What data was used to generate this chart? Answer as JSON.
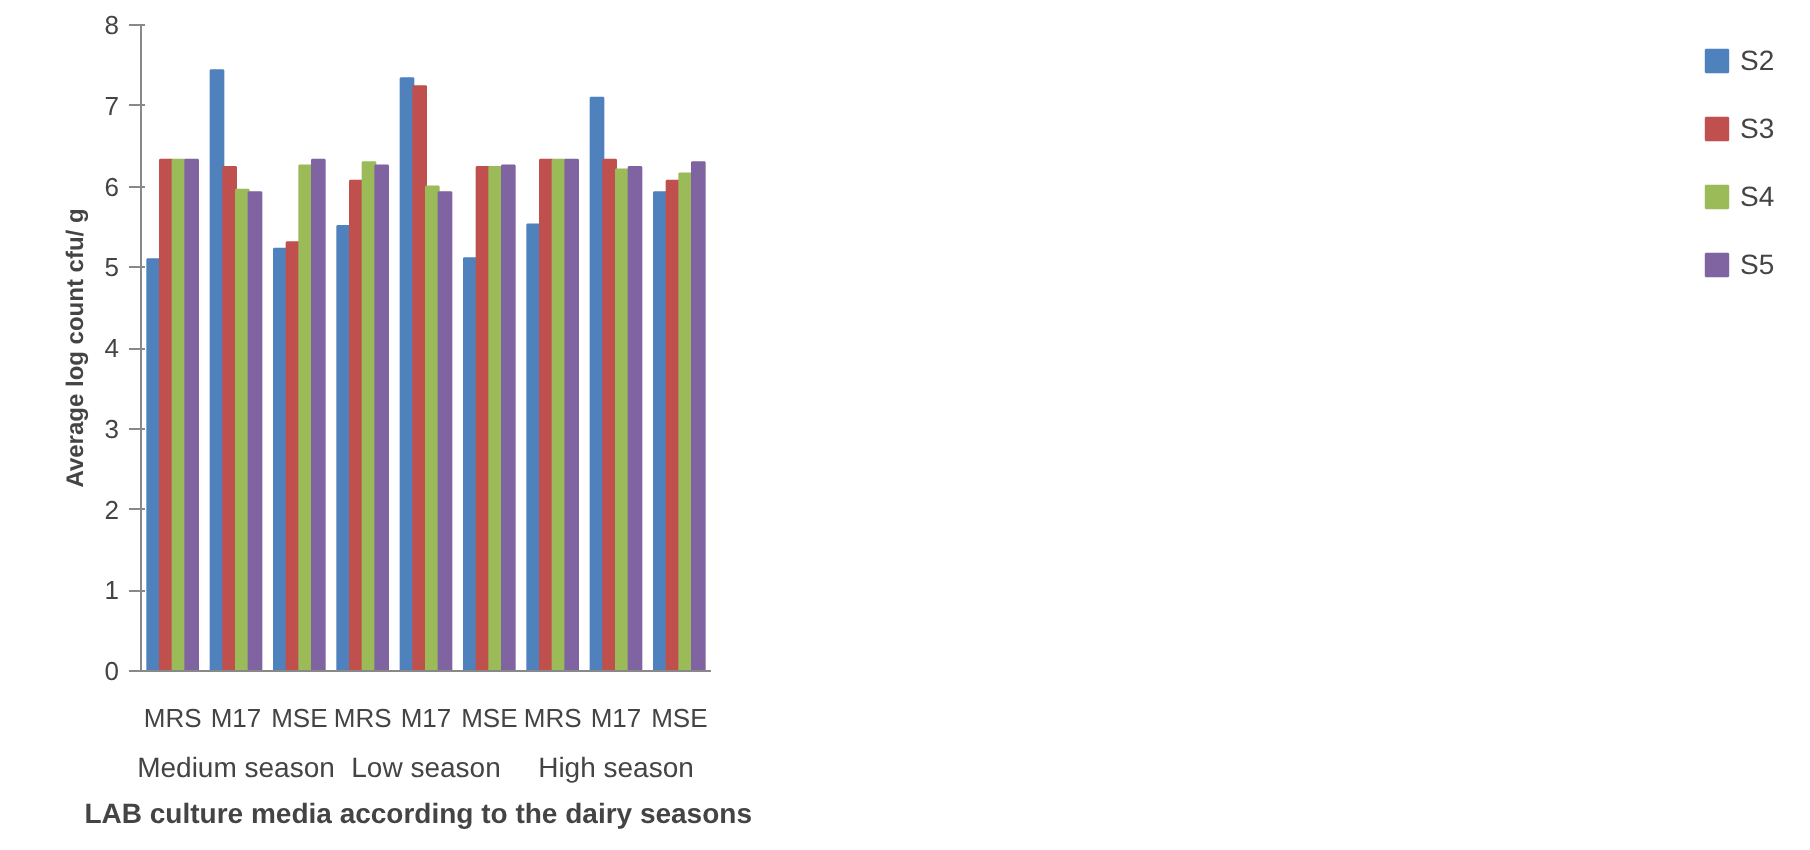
{
  "chart_data": {
    "type": "bar",
    "xlabel": "LAB culture media  according  to the dairy seasons",
    "ylabel": "Average log count cfu/ g",
    "categories": [
      "MRS",
      "M17",
      "MSE",
      "MRS",
      "M17",
      "MSE",
      "MRS",
      "M17",
      "MSE"
    ],
    "annotations": [
      "Medium season",
      "Low season",
      "High season"
    ],
    "series": [
      {
        "name": "S2",
        "color": "#4f81bd",
        "values": [
          5.1,
          7.44,
          5.23,
          5.51,
          7.34,
          5.11,
          5.53,
          7.1,
          5.93
        ]
      },
      {
        "name": "S3",
        "color": "#c0504d",
        "values": [
          6.33,
          6.24,
          5.31,
          6.07,
          7.24,
          6.24,
          6.33,
          6.33,
          6.07
        ]
      },
      {
        "name": "S4",
        "color": "#9bbb59",
        "values": [
          6.33,
          5.96,
          6.26,
          6.3,
          6.0,
          6.24,
          6.33,
          6.21,
          6.16
        ]
      },
      {
        "name": "S5",
        "color": "#8064a2",
        "values": [
          6.33,
          5.93,
          6.33,
          6.26,
          5.93,
          6.26,
          6.33,
          6.24,
          6.3
        ]
      }
    ],
    "ylim": [
      0,
      8
    ],
    "yticks": [
      0,
      1,
      2,
      3,
      4,
      5,
      6,
      7,
      8
    ],
    "grid": false,
    "legend": "right"
  }
}
